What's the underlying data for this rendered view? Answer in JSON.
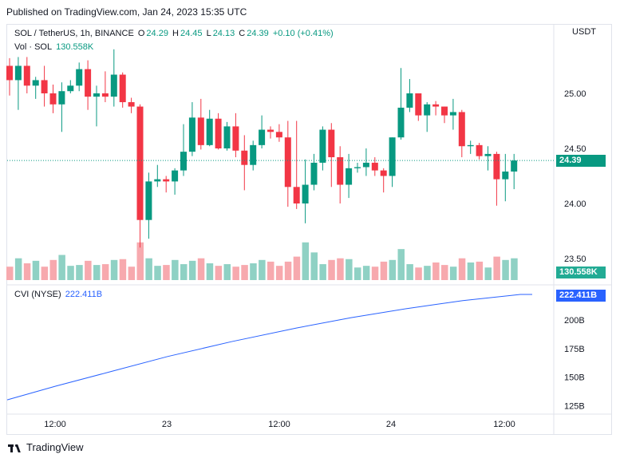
{
  "published": "Published on TradingView.com, Jan 24, 2023 15:35 UTC",
  "legend": {
    "symbol": "SOL / TetherUS, 1h, BINANCE",
    "o_label": "O",
    "o": "24.29",
    "h_label": "H",
    "h": "24.45",
    "l_label": "L",
    "l": "24.13",
    "c_label": "C",
    "c": "24.39",
    "change": "+0.10 (+0.41%)",
    "vol_label": "Vol · SOL",
    "vol": "130.558K",
    "cvi_label": "CVI (NYSE)",
    "cvi": "222.411B"
  },
  "price_axis": {
    "currency": "USDT",
    "ticks": [
      "25.00",
      "24.50",
      "24.00",
      "23.50"
    ],
    "last_price": "24.39",
    "last_volume": "130.558K"
  },
  "cvi_axis": {
    "ticks": [
      "200B",
      "175B",
      "150B",
      "125B"
    ],
    "last": "222.411B"
  },
  "time_axis": {
    "ticks": [
      "12:00",
      "23",
      "12:00",
      "24",
      "12:00"
    ]
  },
  "footer": {
    "brand": "TradingView"
  },
  "colors": {
    "up": "#089981",
    "down": "#f23645",
    "vol_up": "#8fd1c4",
    "vol_down": "#f7a9ae",
    "cvi": "#2962ff"
  },
  "chart_data": [
    {
      "type": "candlestick",
      "title": "SOL / TetherUS, 1h, BINANCE",
      "ylabel": "USDT",
      "ylim": [
        23.45,
        25.35
      ],
      "candles": [
        [
          25.25,
          25.12,
          25.32,
          24.98
        ],
        [
          25.12,
          25.25,
          25.33,
          24.85
        ],
        [
          25.25,
          25.07,
          25.33,
          25.0
        ],
        [
          25.07,
          25.12,
          25.15,
          24.95
        ],
        [
          25.12,
          25.0,
          25.25,
          24.88
        ],
        [
          25.0,
          24.9,
          25.08,
          24.82
        ],
        [
          24.9,
          25.02,
          25.1,
          24.65
        ],
        [
          25.02,
          25.07,
          25.12,
          25.0
        ],
        [
          25.07,
          25.22,
          25.28,
          25.02
        ],
        [
          25.22,
          24.97,
          25.3,
          24.85
        ],
        [
          24.97,
          25.0,
          25.07,
          24.7
        ],
        [
          25.0,
          24.97,
          25.2,
          24.92
        ],
        [
          24.97,
          25.17,
          25.4,
          24.88
        ],
        [
          25.17,
          24.92,
          25.19,
          24.87
        ],
        [
          24.92,
          24.88,
          24.96,
          24.82
        ],
        [
          24.88,
          23.85,
          24.9,
          23.6
        ],
        [
          23.85,
          24.2,
          24.28,
          23.68
        ],
        [
          24.2,
          24.22,
          24.35,
          24.15
        ],
        [
          24.22,
          24.2,
          24.25,
          24.1
        ],
        [
          24.2,
          24.3,
          24.32,
          24.08
        ],
        [
          24.3,
          24.47,
          24.72,
          24.25
        ],
        [
          24.47,
          24.78,
          24.92,
          24.43
        ],
        [
          24.78,
          24.53,
          24.95,
          24.49
        ],
        [
          24.53,
          24.77,
          24.85,
          24.52
        ],
        [
          24.77,
          24.5,
          24.82,
          24.49
        ],
        [
          24.5,
          24.7,
          24.74,
          24.48
        ],
        [
          24.7,
          24.48,
          24.82,
          24.42
        ],
        [
          24.48,
          24.35,
          24.62,
          24.12
        ],
        [
          24.35,
          24.53,
          24.57,
          24.3
        ],
        [
          24.53,
          24.67,
          24.8,
          24.5
        ],
        [
          24.67,
          24.65,
          24.7,
          24.59
        ],
        [
          24.65,
          24.6,
          24.72,
          24.56
        ],
        [
          24.6,
          24.15,
          24.75,
          23.97
        ],
        [
          24.15,
          24.0,
          24.75,
          23.95
        ],
        [
          24.0,
          24.17,
          24.4,
          23.82
        ],
        [
          24.17,
          24.37,
          24.45,
          24.12
        ],
        [
          24.37,
          24.67,
          24.7,
          24.3
        ],
        [
          24.67,
          24.42,
          24.73,
          24.15
        ],
        [
          24.42,
          24.17,
          24.52,
          24.0
        ],
        [
          24.17,
          24.32,
          24.45,
          24.05
        ],
        [
          24.32,
          24.33,
          24.37,
          24.28
        ],
        [
          24.33,
          24.37,
          24.5,
          24.25
        ],
        [
          24.37,
          24.3,
          24.42,
          24.25
        ],
        [
          24.3,
          24.25,
          24.32,
          24.1
        ],
        [
          24.25,
          24.6,
          24.6,
          24.15
        ],
        [
          24.6,
          24.87,
          25.23,
          24.58
        ],
        [
          24.87,
          25.0,
          25.13,
          24.83
        ],
        [
          25.0,
          24.8,
          25.0,
          24.75
        ],
        [
          24.8,
          24.9,
          24.92,
          24.65
        ],
        [
          24.9,
          24.88,
          24.93,
          24.8
        ],
        [
          24.88,
          24.8,
          24.88,
          24.73
        ],
        [
          24.8,
          24.83,
          24.95,
          24.67
        ],
        [
          24.83,
          24.52,
          24.85,
          24.42
        ],
        [
          24.52,
          24.53,
          24.57,
          24.45
        ],
        [
          24.53,
          24.43,
          24.55,
          24.4
        ],
        [
          24.43,
          24.45,
          24.52,
          24.3
        ],
        [
          24.45,
          24.22,
          24.47,
          23.98
        ],
        [
          24.22,
          24.29,
          24.45,
          24.02
        ],
        [
          24.29,
          24.39,
          24.45,
          24.13
        ]
      ]
    },
    {
      "type": "bar",
      "title": "Vol · SOL",
      "values": [
        16,
        26,
        20,
        23,
        16,
        24,
        30,
        17,
        18,
        23,
        18,
        19,
        24,
        25,
        16,
        45,
        26,
        17,
        18,
        24,
        19,
        23,
        26,
        20,
        17,
        19,
        16,
        18,
        20,
        24,
        22,
        17,
        22,
        28,
        45,
        33,
        19,
        24,
        26,
        25,
        15,
        17,
        16,
        22,
        24,
        37,
        19,
        15,
        17,
        21,
        18,
        16,
        26,
        21,
        22,
        15,
        28,
        24,
        26
      ]
    },
    {
      "type": "line",
      "title": "CVI (NYSE)",
      "ylim": [
        115,
        230
      ],
      "x": [
        0,
        1,
        2,
        3,
        4,
        5,
        6,
        7,
        8,
        9,
        10
      ],
      "values": [
        130,
        142,
        155,
        168,
        181,
        193,
        202,
        210,
        217,
        222.411,
        222.411
      ]
    }
  ]
}
